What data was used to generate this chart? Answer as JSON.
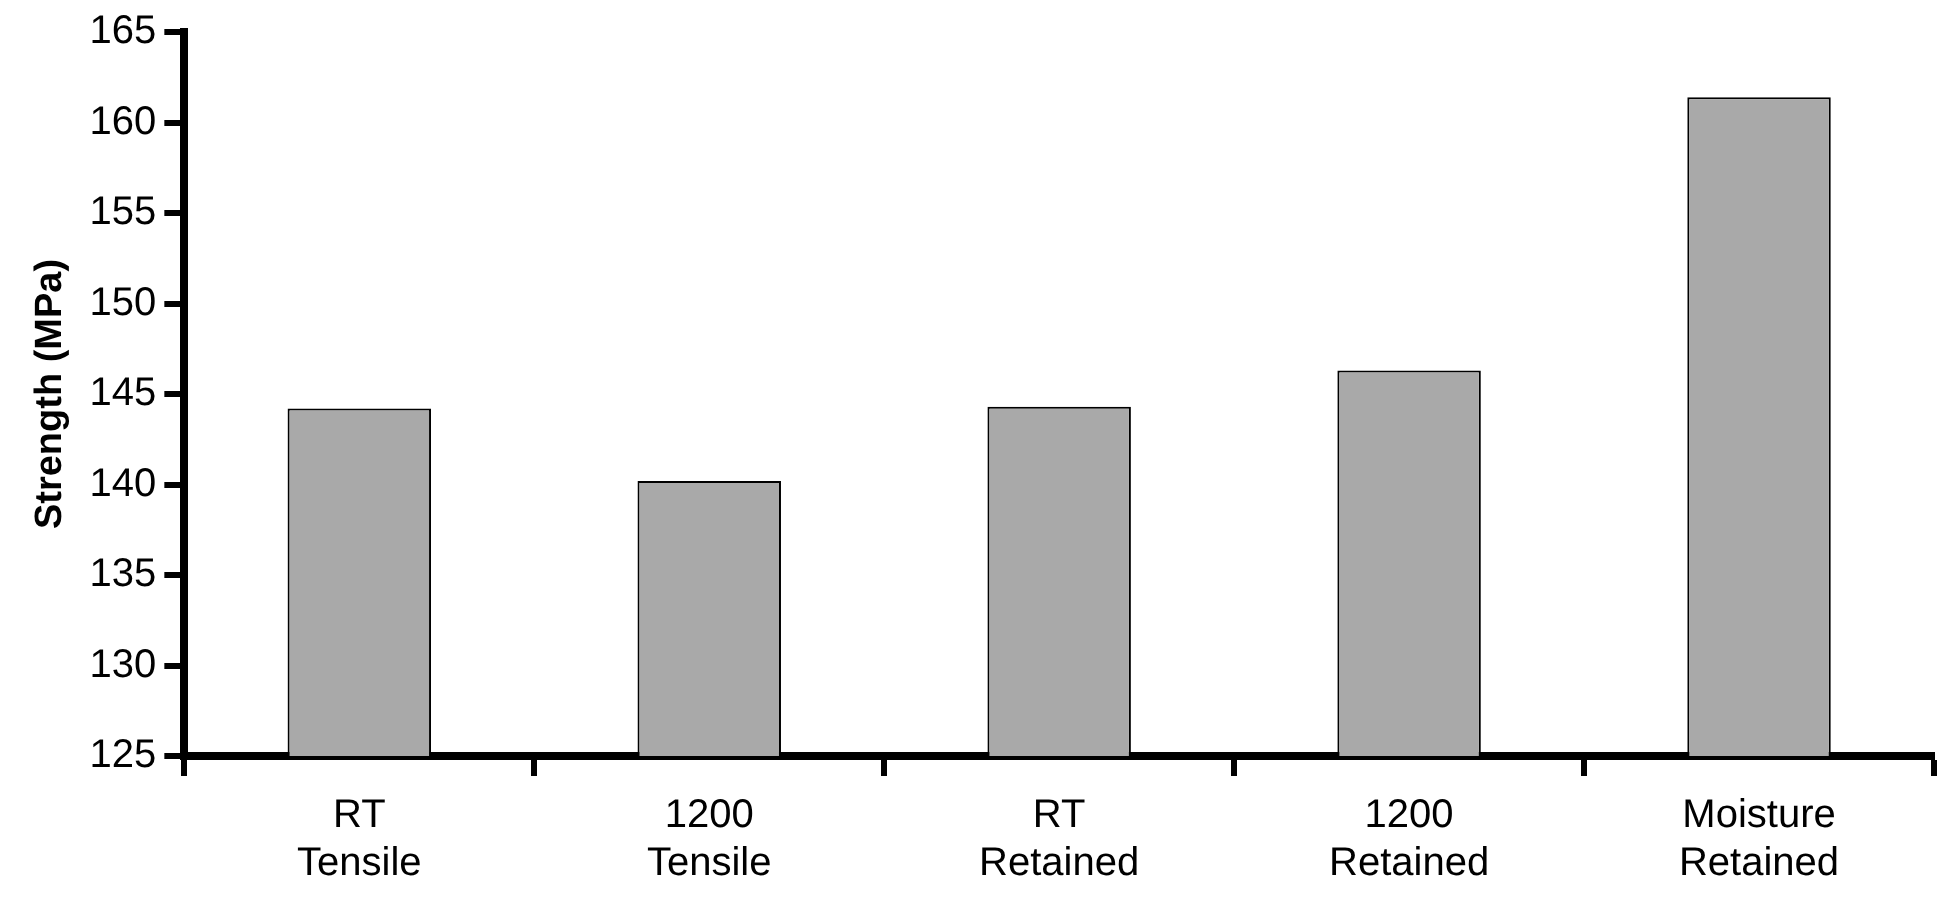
{
  "chart_data": {
    "type": "bar",
    "ylabel": "Strength (MPa)",
    "categories": [
      "RT\nTensile",
      "1200\nTensile",
      "RT\nRetained",
      "1200\nRetained",
      "Moisture\nRetained"
    ],
    "values": [
      144.2,
      140.2,
      144.3,
      146.3,
      161.4
    ],
    "color": "#a9a9a9",
    "ylim": [
      125,
      165
    ],
    "yticks": [
      125,
      130,
      135,
      140,
      145,
      150,
      155,
      160,
      165
    ],
    "grid": false,
    "legend": false
  }
}
